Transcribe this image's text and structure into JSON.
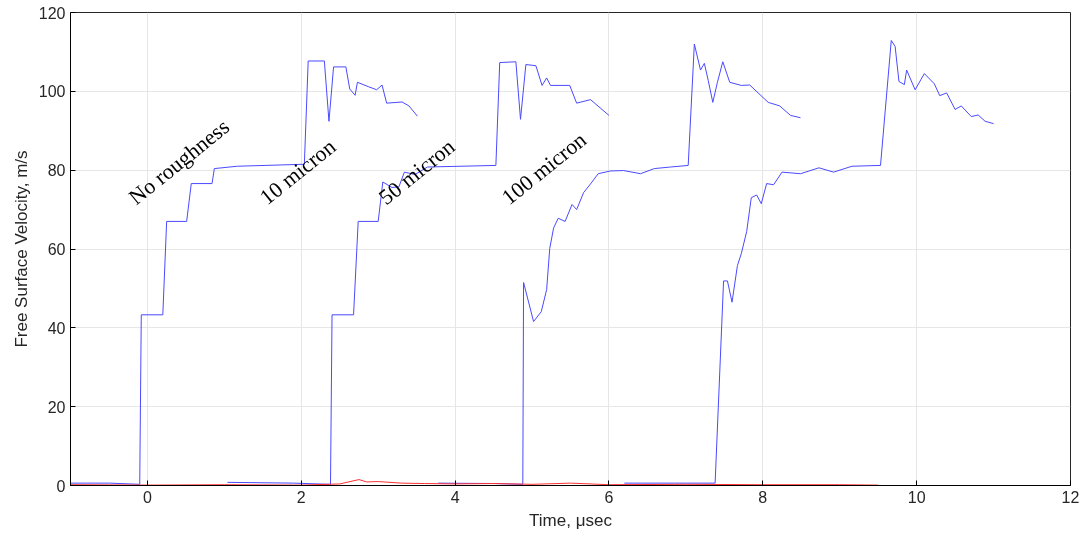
{
  "chart_data": {
    "type": "line",
    "xlabel": "Time, μsec",
    "ylabel": "Free Surface Velocity, m/s",
    "xlim": [
      -1,
      12
    ],
    "ylim": [
      0,
      120
    ],
    "xticks": [
      0,
      2,
      4,
      6,
      8,
      10,
      12
    ],
    "yticks": [
      0,
      20,
      40,
      60,
      80,
      100,
      120
    ],
    "grid": true,
    "marker": "none",
    "line_style": "solid",
    "series": [
      {
        "color": "#4a4aff",
        "x": [
          -1,
          -0.49,
          -0.1,
          -0.08,
          0.2,
          0.25,
          0.51,
          0.57,
          0.84,
          0.87,
          1.17,
          2.04,
          2.09,
          2.3,
          2.36,
          2.42,
          2.58,
          2.63,
          2.7,
          2.73,
          2.87,
          2.98,
          3.05,
          3.11,
          3.31,
          3.4,
          3.51
        ],
        "values": [
          0.6,
          0.6,
          0.3,
          43.3,
          43.3,
          67,
          67,
          76.6,
          76.6,
          80.4,
          81,
          81.5,
          107.7,
          107.7,
          92.4,
          106.2,
          106.2,
          100.6,
          99,
          102.3,
          101.2,
          100.4,
          101.6,
          97,
          97.3,
          96.3,
          93.7
        ]
      },
      {
        "color": "#4a4aff",
        "x": [
          1.04,
          1.9,
          2.38,
          2.4,
          2.68,
          2.74,
          3.0,
          3.06,
          3.18,
          3.27,
          3.34,
          3.48,
          3.64,
          4.53,
          4.58,
          4.79,
          4.85,
          4.92,
          5.05,
          5.13,
          5.19,
          5.24,
          5.49,
          5.58,
          5.76,
          6.0
        ],
        "values": [
          0.8,
          0.6,
          0.3,
          43.3,
          43.3,
          67,
          67,
          77,
          75.6,
          75.8,
          79.5,
          78.9,
          80.8,
          81.2,
          107.3,
          107.5,
          92.9,
          106.8,
          106.5,
          101.5,
          103.4,
          101.5,
          101.5,
          97,
          97.9,
          93.9
        ]
      },
      {
        "color": "#4a4aff",
        "x": [
          3.78,
          4.5,
          4.88,
          4.89,
          5.02,
          5.12,
          5.19,
          5.23,
          5.28,
          5.34,
          5.43,
          5.52,
          5.58,
          5.67,
          5.76,
          5.86,
          6.02,
          6.19,
          6.41,
          6.59,
          6.8,
          7.03,
          7.11,
          7.19,
          7.24,
          7.29,
          7.35,
          7.41,
          7.48,
          7.57,
          7.72,
          7.83,
          8.07,
          8.22,
          8.36,
          8.49
        ],
        "values": [
          0.6,
          0.5,
          0.3,
          51.5,
          41.6,
          44.1,
          49.7,
          60.1,
          65.3,
          67.8,
          67,
          71.3,
          70,
          74.3,
          76.5,
          79.1,
          79.8,
          79.9,
          79.1,
          80.4,
          80.8,
          81.2,
          112,
          105.4,
          107.1,
          102.8,
          97.2,
          102.3,
          107.5,
          102.3,
          101.5,
          101.6,
          97.2,
          96.3,
          93.9,
          93.3
        ]
      },
      {
        "color": "#4a4aff",
        "x": [
          6.2,
          6.85,
          7.38,
          7.49,
          7.54,
          7.6,
          7.67,
          7.72,
          7.79,
          7.85,
          7.92,
          7.98,
          8.05,
          8.14,
          8.25,
          8.49,
          8.73,
          8.92,
          9.16,
          9.53,
          9.67,
          9.72,
          9.77,
          9.84,
          9.87,
          9.98,
          10.1,
          10.23,
          10.3,
          10.39,
          10.5,
          10.58,
          10.71,
          10.8,
          10.89,
          11.0
        ],
        "values": [
          0.6,
          0.6,
          0.6,
          51.9,
          51.9,
          46.5,
          55.8,
          58.8,
          64.4,
          73,
          73.7,
          71.5,
          76.6,
          76.3,
          79.5,
          79.1,
          80.6,
          79.5,
          81,
          81.2,
          112.9,
          111.4,
          102.5,
          101.7,
          105.4,
          100.4,
          104.5,
          101.9,
          98.9,
          99.6,
          95.4,
          96.3,
          93.6,
          94,
          92.4,
          91.8
        ]
      },
      {
        "color": "#ff3030",
        "x": [
          -1,
          0,
          1,
          2,
          2.5,
          2.75,
          2.85,
          3.0,
          3.3,
          3.6,
          4.0,
          4.5,
          5.0,
          5.5,
          6.0,
          7.0,
          8.0,
          9.0,
          9.5
        ],
        "values": [
          0.2,
          0.1,
          0.2,
          0.1,
          0.4,
          1.5,
          0.9,
          1.0,
          0.6,
          0.5,
          0.4,
          0.5,
          0.3,
          0.6,
          0.2,
          0.3,
          0.2,
          0.2,
          0.1
        ]
      }
    ],
    "annotations": [
      "No roughness",
      "10 micron",
      "50 micron",
      "100 micron"
    ]
  }
}
